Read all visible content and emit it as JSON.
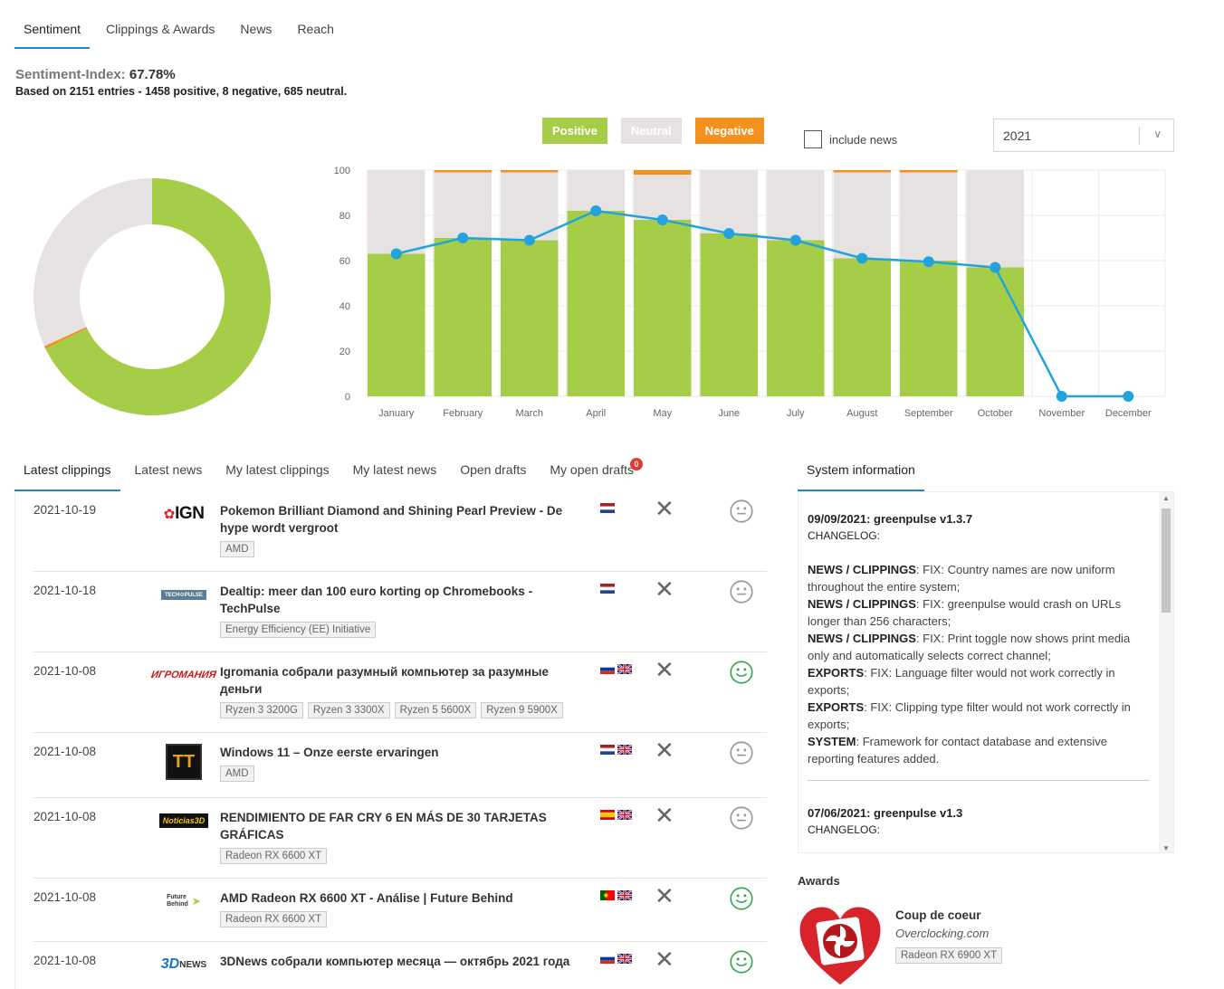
{
  "top_tabs": [
    {
      "label": "Sentiment",
      "active": true
    },
    {
      "label": "Clippings & Awards"
    },
    {
      "label": "News"
    },
    {
      "label": "Reach"
    }
  ],
  "sentiment": {
    "index_label": "Sentiment-Index:",
    "index_value": "67.78%",
    "summary": "Based on 2151 entries - 1458 positive, 8 negative, 685 neutral."
  },
  "legend": {
    "positive": "Positive",
    "neutral": "Neutral",
    "negative": "Negative"
  },
  "include_news_label": "include news",
  "year_select": {
    "value": "2021"
  },
  "colors": {
    "positive": "#a6cd47",
    "neutral": "#e6e2e2",
    "negative": "#f4901e",
    "index_line": "#22a3dd",
    "accent": "#1e88c8"
  },
  "chart_data": [
    {
      "type": "pie",
      "categories": [
        "Positive",
        "Negative",
        "Neutral"
      ],
      "values": [
        1458,
        8,
        685
      ]
    },
    {
      "type": "bar",
      "categories": [
        "January",
        "February",
        "March",
        "April",
        "May",
        "June",
        "July",
        "August",
        "September",
        "October",
        "November",
        "December"
      ],
      "ylim": [
        0,
        100
      ],
      "yticks": [
        0,
        20,
        40,
        60,
        80,
        100
      ],
      "grid": true,
      "series": [
        {
          "name": "Positive",
          "values": [
            63,
            70,
            69,
            82,
            78,
            72,
            69,
            61,
            60,
            57,
            0,
            0
          ]
        },
        {
          "name": "Neutral",
          "values": [
            37,
            29,
            30,
            18,
            20,
            28,
            31,
            38,
            39,
            43,
            0,
            0
          ]
        },
        {
          "name": "Negative",
          "values": [
            0,
            1,
            1,
            0,
            2,
            0,
            0,
            1,
            1,
            0,
            0,
            0
          ]
        }
      ],
      "line": {
        "values": [
          63,
          70,
          69,
          82,
          78,
          72,
          69,
          61,
          59.5,
          57,
          0,
          0
        ]
      }
    }
  ],
  "bottom_tabs": [
    {
      "label": "Latest clippings",
      "active": true
    },
    {
      "label": "Latest news"
    },
    {
      "label": "My latest clippings"
    },
    {
      "label": "My latest news"
    },
    {
      "label": "Open drafts"
    },
    {
      "label": "My open drafts",
      "badge": "0"
    }
  ],
  "clippings": [
    {
      "date": "2021-10-19",
      "logo": "IGN",
      "title": "Pokemon Brilliant Diamond and Shining Pearl Preview - De hype wordt vergroot",
      "tags": [
        "AMD"
      ],
      "flags": [
        "nl"
      ],
      "sentiment": "neutral"
    },
    {
      "date": "2021-10-18",
      "logo": "TECHPULSE",
      "title": "Dealtip: meer dan 100 euro korting op Chromebooks - TechPulse",
      "tags": [
        "Energy Efficiency (EE) Initiative"
      ],
      "flags": [
        "nl"
      ],
      "sentiment": "neutral"
    },
    {
      "date": "2021-10-08",
      "logo": "ИГРОМАНИЯ",
      "title": "Igromania собрали разумный компьютер за разумные деньги",
      "tags": [
        "Ryzen 3 3200G",
        "Ryzen 3 3300X",
        "Ryzen 5 5600X",
        "Ryzen 9 5900X"
      ],
      "flags": [
        "ru",
        "gb"
      ],
      "sentiment": "positive"
    },
    {
      "date": "2021-10-08",
      "logo": "TT",
      "title": "Windows 11 – Onze eerste ervaringen",
      "tags": [
        "AMD"
      ],
      "flags": [
        "nl",
        "gb"
      ],
      "sentiment": "neutral"
    },
    {
      "date": "2021-10-08",
      "logo": "Noticias3D",
      "title": "RENDIMIENTO DE FAR CRY 6 EN MÁS DE 30 TARJETAS GRÁFICAS",
      "tags": [
        "Radeon RX 6600 XT"
      ],
      "flags": [
        "es",
        "gb"
      ],
      "sentiment": "neutral"
    },
    {
      "date": "2021-10-08",
      "logo": "Future Behind",
      "title": "AMD Radeon RX 6600 XT - Análise | Future Behind",
      "tags": [
        "Radeon RX 6600 XT"
      ],
      "flags": [
        "pt",
        "gb"
      ],
      "sentiment": "positive"
    },
    {
      "date": "2021-10-08",
      "logo": "3DNews",
      "title": "3DNews собрали компьютер месяца — октябрь 2021 года",
      "tags": [],
      "flags": [
        "ru",
        "gb"
      ],
      "sentiment": "positive"
    }
  ],
  "system_info": {
    "tab_label": "System information",
    "entries": [
      {
        "version": "09/09/2021: greenpulse v1.3.7",
        "changelog_label": "CHANGELOG:",
        "items": [
          {
            "area": "NEWS / CLIPPINGS",
            "text": ": FIX: Country names are now uniform throughout the entire system;"
          },
          {
            "area": "NEWS / CLIPPINGS",
            "text": ": FIX: greenpulse would crash on URLs longer than 256 characters;"
          },
          {
            "area": "NEWS / CLIPPINGS",
            "text": ": FIX: Print toggle now shows print media only and automatically selects correct channel;"
          },
          {
            "area": "EXPORTS",
            "text": ": FIX: Language filter would not work correctly in exports;"
          },
          {
            "area": "EXPORTS",
            "text": ": FIX: Clipping type filter would not work correctly in exports;"
          },
          {
            "area": "SYSTEM",
            "text": ": Framework for contact database and extensive reporting features added."
          }
        ]
      },
      {
        "version": "07/06/2021: greenpulse v1.3",
        "changelog_label": "CHANGELOG:",
        "items": []
      }
    ]
  },
  "awards": {
    "title": "Awards",
    "items": [
      {
        "name": "Coup de coeur",
        "source": "Overclocking.com",
        "tag": "Radeon RX 6900 XT"
      }
    ]
  }
}
